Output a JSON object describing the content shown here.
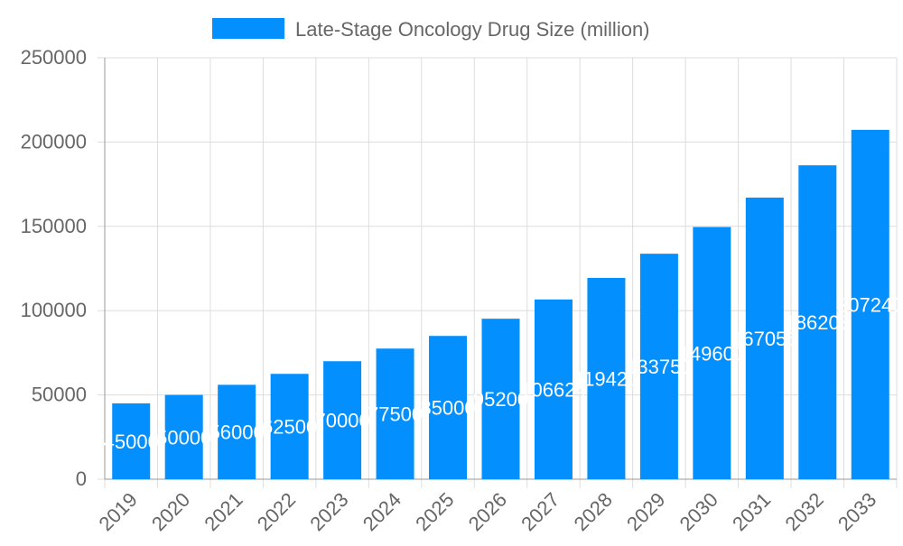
{
  "chart_data": {
    "type": "bar",
    "categories": [
      "2019",
      "2020",
      "2021",
      "2022",
      "2023",
      "2024",
      "2025",
      "2026",
      "2027",
      "2028",
      "2029",
      "2030",
      "2031",
      "2032",
      "2033"
    ],
    "series": [
      {
        "name": "Late-Stage Oncology Drug Size (million)",
        "values": [
          45000,
          50000,
          56000,
          62500,
          70000,
          77500,
          85000,
          95200,
          106624,
          119420,
          133750,
          149600,
          167056,
          186208,
          207240
        ]
      }
    ],
    "ylim": [
      0,
      250000
    ],
    "yticks": [
      0,
      50000,
      100000,
      150000,
      200000,
      250000
    ],
    "grid": true,
    "legend": "top",
    "colors": {
      "bar": "#038ffd",
      "label": "#ffffff",
      "grid": "#dddddd",
      "axis": "#999999",
      "text": "#666666"
    }
  }
}
